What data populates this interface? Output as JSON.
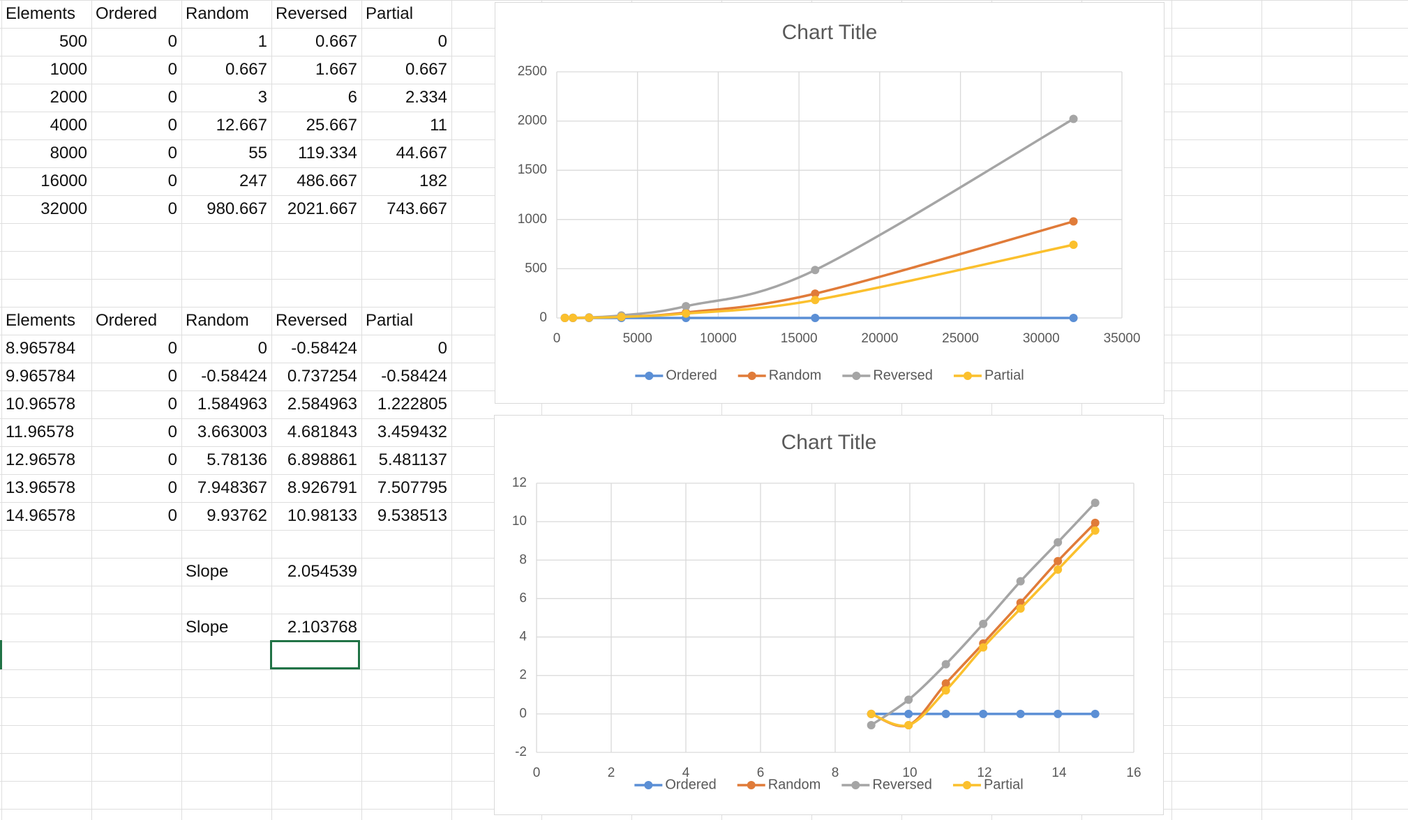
{
  "table1": {
    "header": [
      "Elements",
      "Ordered",
      "Random",
      "Reversed",
      "Partial"
    ],
    "rows": [
      [
        "500",
        "0",
        "1",
        "0.667",
        "0"
      ],
      [
        "1000",
        "0",
        "0.667",
        "1.667",
        "0.667"
      ],
      [
        "2000",
        "0",
        "3",
        "6",
        "2.334"
      ],
      [
        "4000",
        "0",
        "12.667",
        "25.667",
        "11"
      ],
      [
        "8000",
        "0",
        "55",
        "119.334",
        "44.667"
      ],
      [
        "16000",
        "0",
        "247",
        "486.667",
        "182"
      ],
      [
        "32000",
        "0",
        "980.667",
        "2021.667",
        "743.667"
      ]
    ]
  },
  "table2": {
    "header": [
      "Elements",
      "Ordered",
      "Random",
      "Reversed",
      "Partial"
    ],
    "rows": [
      [
        "8.965784",
        "0",
        "0",
        "-0.58424",
        "0"
      ],
      [
        "9.965784",
        "0",
        "-0.58424",
        "0.737254",
        "-0.58424"
      ],
      [
        "10.96578",
        "0",
        "1.584963",
        "2.584963",
        "1.222805"
      ],
      [
        "11.96578",
        "0",
        "3.663003",
        "4.681843",
        "3.459432"
      ],
      [
        "12.96578",
        "0",
        "5.78136",
        "6.898861",
        "5.481137"
      ],
      [
        "13.96578",
        "0",
        "7.948367",
        "8.926791",
        "7.507795"
      ],
      [
        "14.96578",
        "0",
        "9.93762",
        "10.98133",
        "9.538513"
      ]
    ]
  },
  "slopes": [
    {
      "label": "Slope",
      "value": "2.054539"
    },
    {
      "label": "Slope",
      "value": "2.103768"
    }
  ],
  "chart_data": [
    {
      "type": "scatter",
      "smooth": true,
      "markers": true,
      "grid": true,
      "legend": "bottom",
      "title": "Chart Title",
      "x": [
        500,
        1000,
        2000,
        4000,
        8000,
        16000,
        32000
      ],
      "series": [
        {
          "name": "Ordered",
          "color": "#5b8fd5",
          "values": [
            0,
            0,
            0,
            0,
            0,
            0,
            0
          ]
        },
        {
          "name": "Random",
          "color": "#e07b39",
          "values": [
            1,
            0.667,
            3,
            12.667,
            55,
            247,
            980.667
          ]
        },
        {
          "name": "Reversed",
          "color": "#a5a5a5",
          "values": [
            0.667,
            1.667,
            6,
            25.667,
            119.334,
            486.667,
            2021.667
          ]
        },
        {
          "name": "Partial",
          "color": "#fbc02d",
          "values": [
            0,
            0.667,
            2.334,
            11,
            44.667,
            182,
            743.667
          ]
        }
      ],
      "xlim": [
        0,
        35000
      ],
      "xticks": [
        0,
        5000,
        10000,
        15000,
        20000,
        25000,
        30000,
        35000
      ],
      "ylim": [
        0,
        2500
      ],
      "yticks": [
        0,
        500,
        1000,
        1500,
        2000,
        2500
      ]
    },
    {
      "type": "scatter",
      "smooth": true,
      "markers": true,
      "grid": true,
      "legend": "bottom",
      "title": "Chart Title",
      "x": [
        8.965784,
        9.965784,
        10.96578,
        11.96578,
        12.96578,
        13.96578,
        14.96578
      ],
      "series": [
        {
          "name": "Ordered",
          "color": "#5b8fd5",
          "values": [
            0,
            0,
            0,
            0,
            0,
            0,
            0
          ]
        },
        {
          "name": "Random",
          "color": "#e07b39",
          "values": [
            0,
            -0.58424,
            1.584963,
            3.663003,
            5.78136,
            7.948367,
            9.93762
          ]
        },
        {
          "name": "Reversed",
          "color": "#a5a5a5",
          "values": [
            -0.58424,
            0.737254,
            2.584963,
            4.681843,
            6.898861,
            8.926791,
            10.98133
          ]
        },
        {
          "name": "Partial",
          "color": "#fbc02d",
          "values": [
            0,
            -0.58424,
            1.222805,
            3.459432,
            5.481137,
            7.507795,
            9.538513
          ]
        }
      ],
      "xlim": [
        0,
        16
      ],
      "xticks": [
        0,
        2,
        4,
        6,
        8,
        10,
        12,
        14,
        16
      ],
      "ylim": [
        -2,
        12
      ],
      "yticks": [
        -2,
        0,
        2,
        4,
        6,
        8,
        10,
        12
      ]
    }
  ]
}
